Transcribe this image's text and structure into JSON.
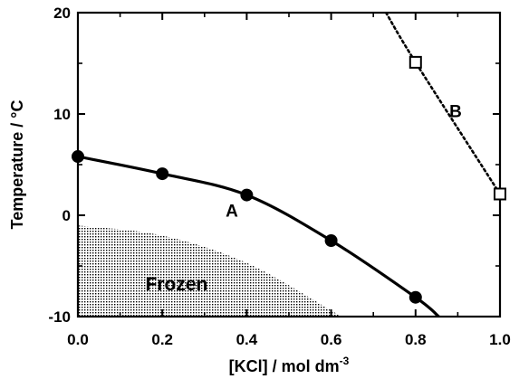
{
  "chart_data": {
    "type": "line",
    "xlabel": "[KCl] / mol dm",
    "xlabel_superscript": "-3",
    "ylabel": "Temperature / °C",
    "xlim": [
      0.0,
      1.0
    ],
    "ylim": [
      -10,
      20
    ],
    "x_ticks": [
      {
        "value": 0.0,
        "label": "0.0"
      },
      {
        "value": 0.2,
        "label": "0.2"
      },
      {
        "value": 0.4,
        "label": "0.4"
      },
      {
        "value": 0.6,
        "label": "0.6"
      },
      {
        "value": 0.8,
        "label": "0.8"
      },
      {
        "value": 1.0,
        "label": "1.0"
      }
    ],
    "y_ticks": [
      {
        "value": -10,
        "label": "-10"
      },
      {
        "value": 0,
        "label": "0"
      },
      {
        "value": 10,
        "label": "10"
      },
      {
        "value": 20,
        "label": "20"
      }
    ],
    "grid": false,
    "series": [
      {
        "name": "A",
        "style": "solid",
        "marker": "filled-circle",
        "color": "#000000",
        "points": [
          {
            "x": 0.0,
            "y": 5.8
          },
          {
            "x": 0.2,
            "y": 4.1
          },
          {
            "x": 0.4,
            "y": 2.0
          },
          {
            "x": 0.6,
            "y": -2.5
          },
          {
            "x": 0.8,
            "y": -8.1
          }
        ],
        "curve_end": {
          "x": 0.855,
          "y": -10
        }
      },
      {
        "name": "B",
        "style": "dotted",
        "marker": "open-square",
        "color": "#000000",
        "points": [
          {
            "x": 0.8,
            "y": 15.1
          },
          {
            "x": 1.0,
            "y": 2.1
          }
        ],
        "curve_start": {
          "x": 0.73,
          "y": 20
        }
      }
    ],
    "annotations": [
      {
        "text": "A",
        "x": 0.35,
        "y": 0.5
      },
      {
        "text": "B",
        "x": 0.88,
        "y": 10.3
      },
      {
        "text": "Frozen",
        "x": 0.16,
        "y": -6.8
      }
    ],
    "frozen_region": {
      "label": "Frozen",
      "boundary": [
        {
          "x": 0.0,
          "y": -1.0
        },
        {
          "x": 0.2,
          "y": -2.0
        },
        {
          "x": 0.4,
          "y": -4.7
        },
        {
          "x": 0.6,
          "y": -9.4
        },
        {
          "x": 0.62,
          "y": -10
        }
      ]
    }
  }
}
